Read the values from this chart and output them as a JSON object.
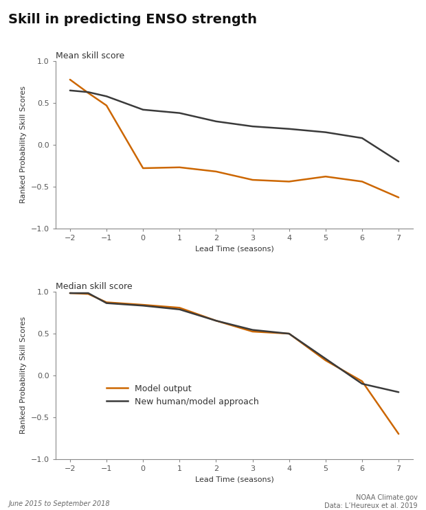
{
  "title": "Skill in predicting ENSO strength",
  "subtitle_top": "Mean skill score",
  "subtitle_bottom": "Median skill score",
  "xlabel": "Lead Time (seasons)",
  "ylabel": "Ranked Probability Skill Scores",
  "x_ticks": [
    -2,
    -1,
    0,
    1,
    2,
    3,
    4,
    5,
    6,
    7
  ],
  "ylim": [
    -1,
    1
  ],
  "yticks": [
    -1,
    -0.5,
    0,
    0.5,
    1
  ],
  "mean_x": [
    -2,
    -1.5,
    -1,
    0,
    1,
    2,
    3,
    4,
    5,
    6,
    7
  ],
  "mean_model": [
    0.78,
    0.62,
    0.47,
    -0.28,
    -0.27,
    -0.32,
    -0.42,
    -0.44,
    -0.38,
    -0.44,
    -0.63
  ],
  "mean_human": [
    0.65,
    0.63,
    0.58,
    0.42,
    0.38,
    0.28,
    0.22,
    0.19,
    0.15,
    0.08,
    -0.2
  ],
  "median_x": [
    -2,
    -1.5,
    -1,
    0,
    1,
    2,
    3,
    4,
    5,
    6,
    7
  ],
  "median_model": [
    0.985,
    0.975,
    0.875,
    0.845,
    0.81,
    0.655,
    0.525,
    0.5,
    0.18,
    -0.07,
    -0.7
  ],
  "median_human": [
    0.985,
    0.985,
    0.865,
    0.835,
    0.79,
    0.655,
    0.545,
    0.5,
    0.2,
    -0.1,
    -0.2
  ],
  "model_color": "#cc6600",
  "human_color": "#3a3a3a",
  "model_label": "Model output",
  "human_label": "New human/model approach",
  "line_width": 1.8,
  "footer_left": "June 2015 to September 2018",
  "footer_right_line1": "NOAA Climate.gov",
  "footer_right_line2": "Data: L’Heureux et al. 2019",
  "bg_color": "#ffffff",
  "axes_bg": "#ffffff",
  "spine_color": "#888888",
  "tick_label_color": "#555555",
  "text_color": "#333333",
  "title_fontsize": 14,
  "subtitle_fontsize": 9,
  "axis_label_fontsize": 8,
  "tick_fontsize": 8,
  "legend_fontsize": 9,
  "footer_fontsize": 7
}
